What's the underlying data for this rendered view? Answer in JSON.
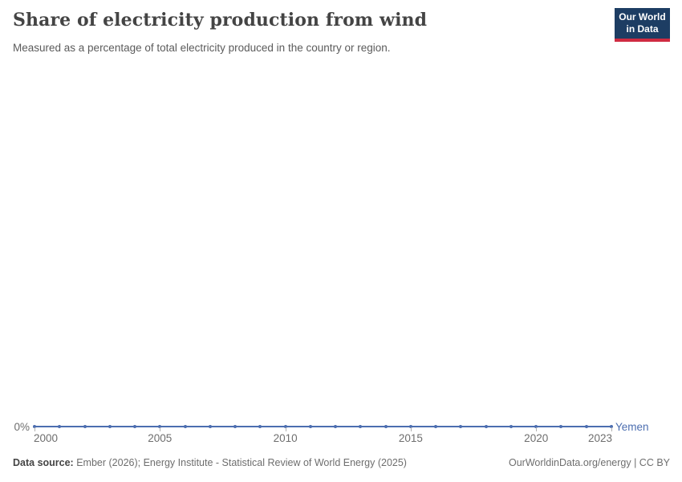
{
  "header": {
    "title": "Share of electricity production from wind",
    "subtitle": "Measured as a percentage of total electricity produced in the country or region.",
    "logo": {
      "line1": "Our World",
      "line2": "in Data",
      "bg_color": "#1d3d63",
      "accent_color": "#cf2b41"
    }
  },
  "chart_data": {
    "type": "line",
    "title": "Share of electricity production from wind",
    "x": [
      2000,
      2001,
      2002,
      2003,
      2004,
      2005,
      2006,
      2007,
      2008,
      2009,
      2010,
      2011,
      2012,
      2013,
      2014,
      2015,
      2016,
      2017,
      2018,
      2019,
      2020,
      2021,
      2022,
      2023
    ],
    "series": [
      {
        "name": "Yemen",
        "color": "#4c6eb0",
        "values": [
          0,
          0,
          0,
          0,
          0,
          0,
          0,
          0,
          0,
          0,
          0,
          0,
          0,
          0,
          0,
          0,
          0,
          0,
          0,
          0,
          0,
          0,
          0,
          0
        ]
      }
    ],
    "x_ticks": [
      2000,
      2005,
      2010,
      2015,
      2020,
      2023
    ],
    "y_ticks": [
      "0%"
    ],
    "xlabel": "",
    "ylabel": "",
    "ylim": [
      0,
      0
    ],
    "grid": false,
    "legend_position": "line-end-label",
    "marker": "point"
  },
  "footer": {
    "source_label": "Data source:",
    "source_text": " Ember (2026); Energy Institute - Statistical Review of World Energy (2025)",
    "link": "OurWorldinData.org/energy | CC BY"
  }
}
